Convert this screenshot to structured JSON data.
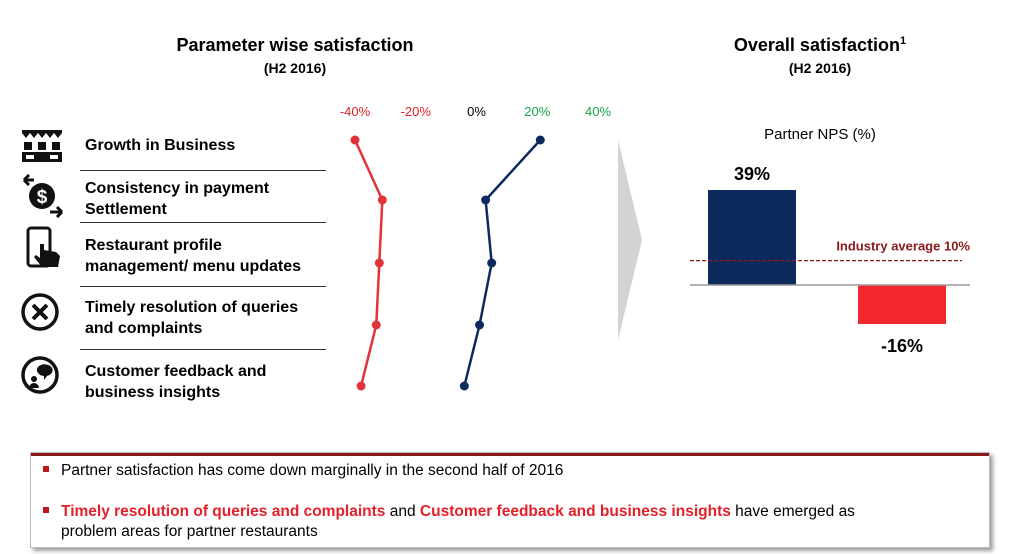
{
  "left": {
    "title": "Parameter wise satisfaction",
    "subtitle": "(H2 2016)",
    "parameters": [
      {
        "label_lines": [
          "Growth in Business"
        ],
        "icon": "storefront-icon"
      },
      {
        "label_lines": [
          "Consistency in payment",
          "Settlement"
        ],
        "icon": "payment-exchange-icon"
      },
      {
        "label_lines": [
          "Restaurant profile",
          "management/ menu updates"
        ],
        "icon": "phone-touch-icon"
      },
      {
        "label_lines": [
          "Timely resolution of queries",
          "and complaints"
        ],
        "icon": "close-circle-icon"
      },
      {
        "label_lines": [
          "Customer feedback and",
          "business insights"
        ],
        "icon": "chat-bubble-icon"
      }
    ]
  },
  "right": {
    "title": "Overall satisfaction",
    "title_sup": "1",
    "subtitle": "(H2 2016)"
  },
  "chart_data": [
    {
      "type": "line",
      "x_ticks": [
        {
          "label": "-40%",
          "value": -40,
          "color": "#e4202a"
        },
        {
          "label": "-20%",
          "value": -20,
          "color": "#e4202a"
        },
        {
          "label": "0%",
          "value": 0,
          "color": "#000000"
        },
        {
          "label": "20%",
          "value": 20,
          "color": "#1aa34a"
        },
        {
          "label": "40%",
          "value": 40,
          "color": "#1aa34a"
        }
      ],
      "xlim": [
        -40,
        40
      ],
      "categories": [
        "Growth in Business",
        "Consistency in payment Settlement",
        "Restaurant profile management/ menu updates",
        "Timely resolution of queries and complaints",
        "Customer feedback and business insights"
      ],
      "series": [
        {
          "color": "#e4323a",
          "values": [
            -40,
            -31,
            -32,
            -33,
            -38
          ]
        },
        {
          "color": "#0d2a5c",
          "values": [
            21,
            3,
            5,
            1,
            -4
          ]
        }
      ]
    },
    {
      "type": "bar",
      "title": "Partner NPS (%)",
      "categories": [
        "",
        ""
      ],
      "values": [
        39,
        -16
      ],
      "value_labels": [
        "39%",
        "-16%"
      ],
      "colors": [
        "#0d2a5c",
        "#f3262e"
      ],
      "reference_line": {
        "value": 10,
        "label": "Industry average 10%",
        "color": "#8b1a1a"
      }
    }
  ],
  "summary": {
    "bullet1": "Partner satisfaction has come down marginally in the second half of 2016",
    "bullet2_hl1": "Timely resolution of queries and complaints",
    "bullet2_and": " and ",
    "bullet2_hl2": "Customer feedback and business insights",
    "bullet2_rest1": " have emerged as",
    "bullet2_rest2": "problem areas for partner restaurants"
  }
}
